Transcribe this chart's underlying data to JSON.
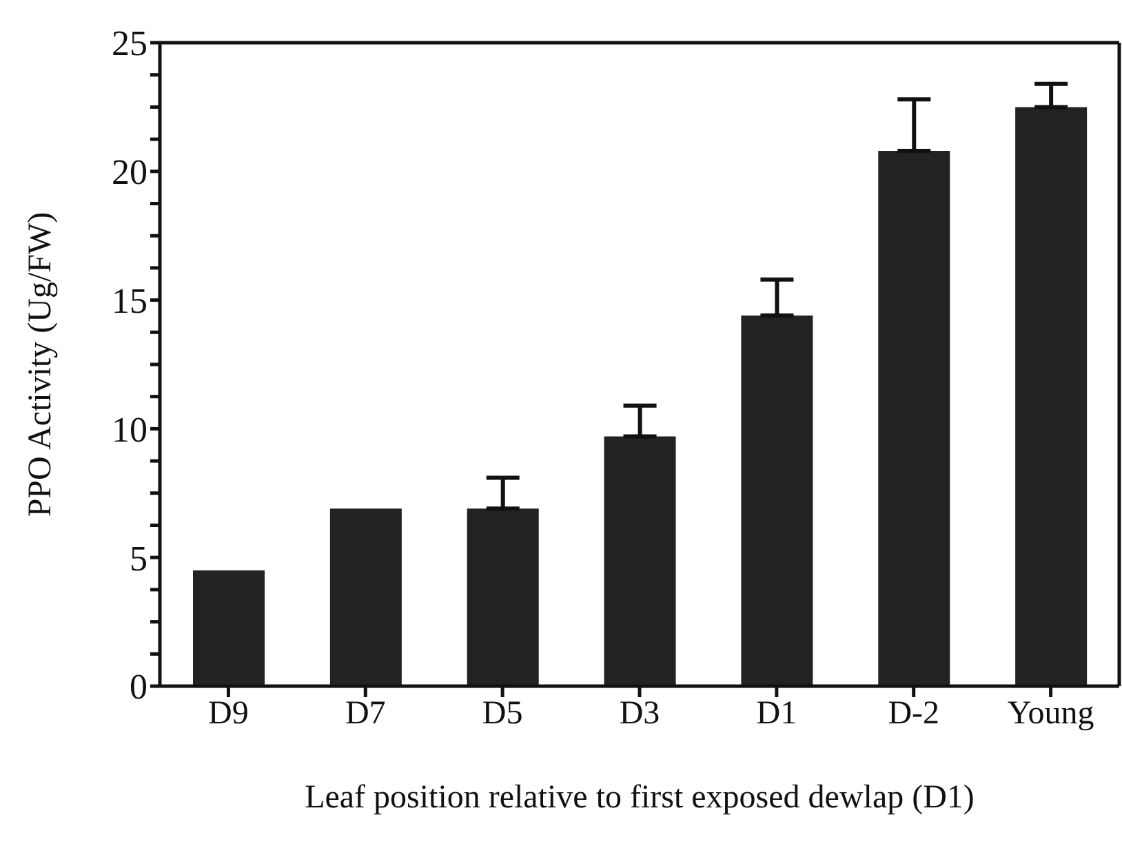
{
  "chart_data": {
    "type": "bar",
    "xlabel": "Leaf position relative to first exposed dewlap (D1)",
    "ylabel": "PPO Activity (Ug/FW)",
    "categories": [
      "D9",
      "D7",
      "D5",
      "D3",
      "D1",
      "D-2",
      "Young"
    ],
    "values": [
      4.5,
      6.9,
      6.9,
      9.7,
      14.4,
      20.8,
      22.5
    ],
    "errors": [
      null,
      null,
      [
        6.9,
        8.1
      ],
      [
        9.7,
        10.9
      ],
      [
        14.4,
        15.8
      ],
      [
        20.8,
        22.8
      ],
      [
        22.5,
        23.4
      ]
    ],
    "color": "#222222",
    "ylim": [
      0,
      25
    ],
    "yticks": [
      0,
      {
        "value": 1.25,
        "label": null
      },
      {
        "value": 2.5,
        "label": null
      },
      {
        "value": 3.75,
        "label": null
      },
      5,
      {
        "value": 6.25,
        "label": null
      },
      {
        "value": 7.5,
        "label": null
      },
      {
        "value": 8.75,
        "label": null
      },
      10,
      {
        "value": 11.25,
        "label": null
      },
      {
        "value": 12.5,
        "label": null
      },
      {
        "value": 13.75,
        "label": null
      },
      15,
      {
        "value": 16.25,
        "label": null
      },
      {
        "value": 17.5,
        "label": null
      },
      {
        "value": 18.75,
        "label": null
      },
      20,
      {
        "value": 21.25,
        "label": null
      },
      {
        "value": 22.5,
        "label": null
      },
      {
        "value": 23.75,
        "label": null
      },
      25
    ],
    "grid": false,
    "legend": false
  }
}
